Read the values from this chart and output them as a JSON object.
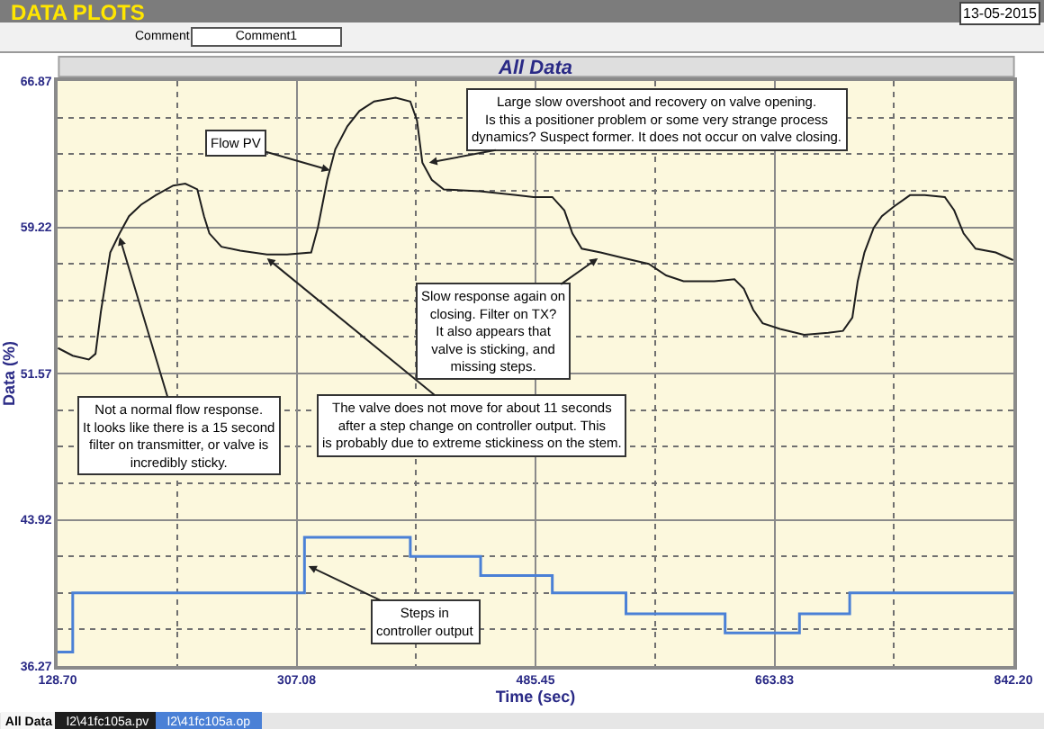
{
  "chart_data": {
    "type": "line",
    "title": "All Data",
    "xlabel": "Time (sec)",
    "ylabel": "Data (%)",
    "xlim": [
      128.7,
      842.2
    ],
    "xticks": [
      {
        "value": 128.7,
        "label": "128.70"
      },
      307.08,
      485.45,
      663.83,
      {
        "value": 842.2,
        "label": "842.20"
      }
    ],
    "ylim": [
      36.27,
      66.87
    ],
    "yticks": [
      36.27,
      43.92,
      51.57,
      59.22,
      66.87
    ],
    "grid": true,
    "legend": "bottom left",
    "series": [
      {
        "name": "I2\\41fc105a.pv",
        "color": "#1e1e1e",
        "x": [
          129,
          140,
          152,
          157,
          161,
          168,
          175,
          182,
          191,
          202,
          215,
          224,
          233,
          238,
          242,
          251,
          265,
          285,
          300,
          318,
          323,
          330,
          336,
          345,
          354,
          365,
          381,
          392,
          397,
          401,
          408,
          417,
          444,
          471,
          484,
          498,
          507,
          513,
          520,
          534,
          552,
          570,
          583,
          596,
          619,
          634,
          641,
          648,
          655,
          668,
          686,
          704,
          715,
          722,
          726,
          731,
          738,
          744,
          753,
          765,
          776,
          791,
          798,
          805,
          814,
          829,
          842
        ],
        "values": [
          52.9,
          52.5,
          52.3,
          52.6,
          54.8,
          57.9,
          58.9,
          59.8,
          60.4,
          60.9,
          61.4,
          61.5,
          61.2,
          59.8,
          58.9,
          58.2,
          58.0,
          57.8,
          57.8,
          57.9,
          59.2,
          61.7,
          63.3,
          64.5,
          65.3,
          65.8,
          66.0,
          65.8,
          64.8,
          62.6,
          61.7,
          61.2,
          61.1,
          60.9,
          60.8,
          60.8,
          60.1,
          58.9,
          58.1,
          57.9,
          57.6,
          57.3,
          56.7,
          56.4,
          56.4,
          56.5,
          56.0,
          54.9,
          54.2,
          53.9,
          53.6,
          53.7,
          53.8,
          54.5,
          56.4,
          57.9,
          59.2,
          59.8,
          60.3,
          60.9,
          60.9,
          60.8,
          60.1,
          58.9,
          58.1,
          57.9,
          57.5
        ]
      },
      {
        "name": "I2\\41fc105a.op",
        "type": "step",
        "color": "#4a80d6",
        "x": [
          128.7,
          140,
          313,
          392,
          444.5,
          498,
          553,
          627,
          682.5,
          720,
          842.2
        ],
        "values": [
          37.0,
          40.1,
          43.0,
          42.0,
          41.0,
          40.1,
          39.0,
          38.0,
          39.0,
          40.1,
          40.1
        ]
      }
    ],
    "annotations": [
      "DATA PLOTS",
      "13-05-2015",
      "Comment",
      "Comment1",
      {
        "text": "Flow PV",
        "x": 332,
        "y": 62.2
      },
      {
        "text": "Not a normal flow response.\nIt looks like there is a 15 second\nfilter on transmitter, or valve is\nincredibly sticky.",
        "x": 175,
        "y": 58.7
      },
      {
        "text": "The valve does not move for about 11 seconds\nafter a step change on controller output. This\nis probably due to extreme stickiness on the stem.",
        "x": 285,
        "y": 57.6
      },
      {
        "text": "Large slow overshoot and recovery on valve opening.\nIs this a positioner problem or some very strange process\ndynamics? Suspect former. It does not occur on valve closing.",
        "x": 406,
        "y": 62.6
      },
      {
        "text": "Slow response again on\nclosing. Filter on TX?\nIt also appears that\nvalve is sticking, and\nmissing steps.",
        "x": 532,
        "y": 57.6
      },
      {
        "text": "Steps in\ncontroller output",
        "x": 316,
        "y": 41.5
      },
      "All Data"
    ]
  }
}
